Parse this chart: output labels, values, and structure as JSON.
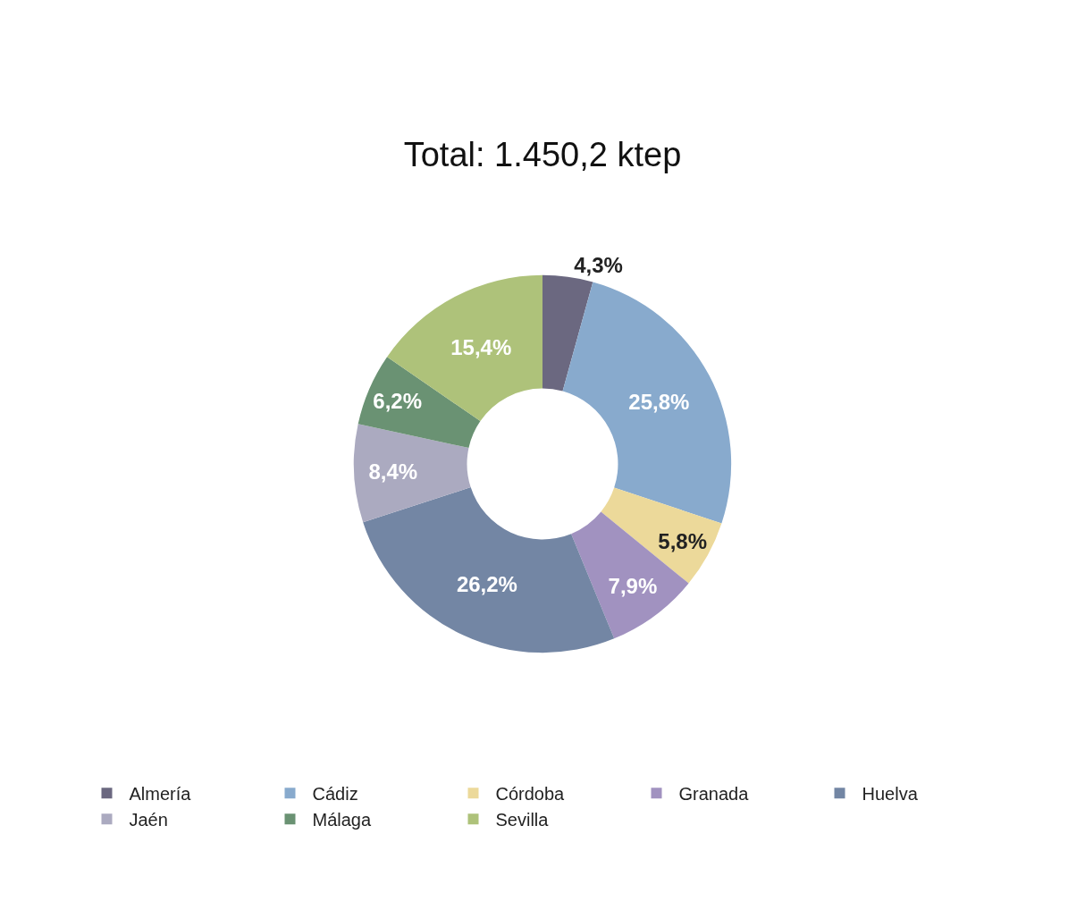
{
  "chart_data": {
    "type": "donut",
    "title": "Total: 1.450,2 ktep",
    "categories": [
      "Almería",
      "Cádiz",
      "Córdoba",
      "Granada",
      "Huelva",
      "Jaén",
      "Málaga",
      "Sevilla"
    ],
    "values": [
      4.3,
      25.8,
      5.8,
      7.9,
      26.2,
      8.4,
      6.2,
      15.4
    ],
    "value_labels": [
      "4,3%",
      "25,8%",
      "5,8%",
      "7,9%",
      "26,2%",
      "8,4%",
      "6,2%",
      "15,4%"
    ],
    "colors": [
      "#6b6880",
      "#88aacd",
      "#ecd99a",
      "#a192c0",
      "#7386a4",
      "#abaac0",
      "#6a9273",
      "#aec27a"
    ],
    "legend": "bottom"
  }
}
